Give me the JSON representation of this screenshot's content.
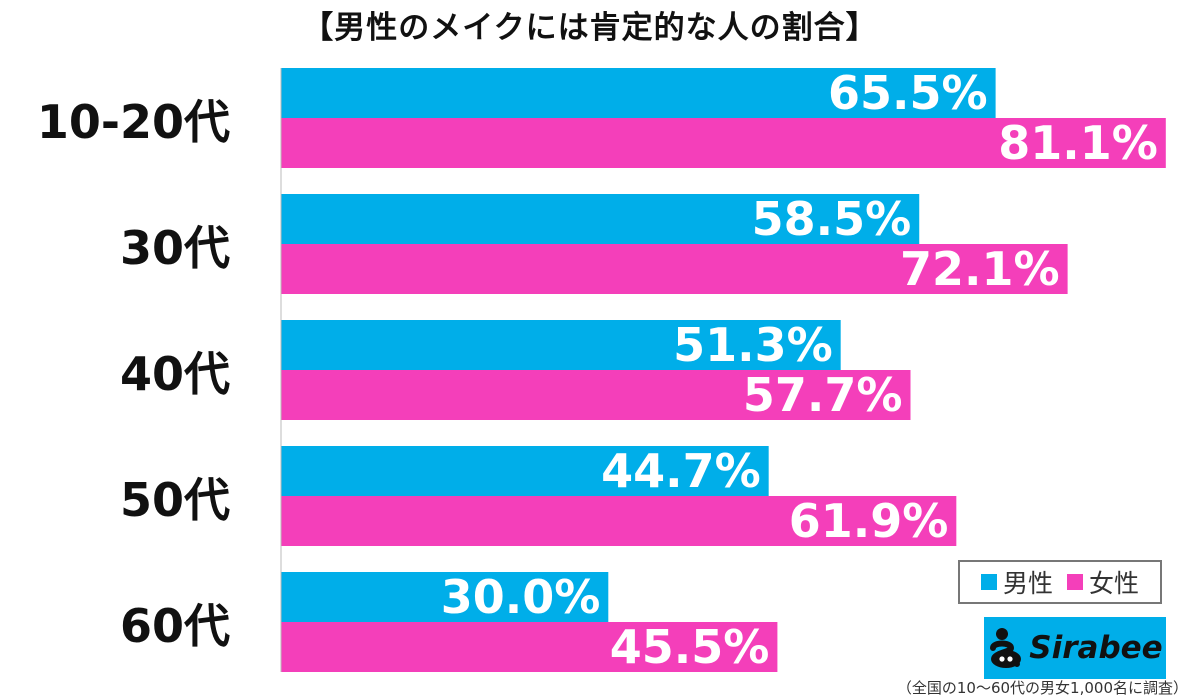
{
  "colors": {
    "male": "#00aee9",
    "female": "#f43fba",
    "axis": "#bbbbbb"
  },
  "legend": {
    "male": "男性",
    "female": "女性"
  },
  "logo": {
    "text": "Sirabee",
    "icon": "sirabee-logo-icon"
  },
  "source_note": "（全国の10～60代の男女1,000名に調査）",
  "chart_data": {
    "type": "bar",
    "orientation": "horizontal",
    "title": "【男性のメイクには肯定的な人の割合】",
    "categories": [
      "10-20代",
      "30代",
      "40代",
      "50代",
      "60代"
    ],
    "series": [
      {
        "name": "男性",
        "values": [
          65.5,
          58.5,
          51.3,
          44.7,
          30.0
        ],
        "labels": [
          "65.5%",
          "58.5%",
          "51.3%",
          "44.7%",
          "30.0%"
        ]
      },
      {
        "name": "女性",
        "values": [
          81.1,
          72.1,
          57.7,
          61.9,
          45.5
        ],
        "labels": [
          "81.1%",
          "72.1%",
          "57.7%",
          "61.9%",
          "45.5%"
        ]
      }
    ],
    "xlim": [
      0,
      100
    ],
    "grid": false,
    "legend_position": "bottom-right"
  }
}
